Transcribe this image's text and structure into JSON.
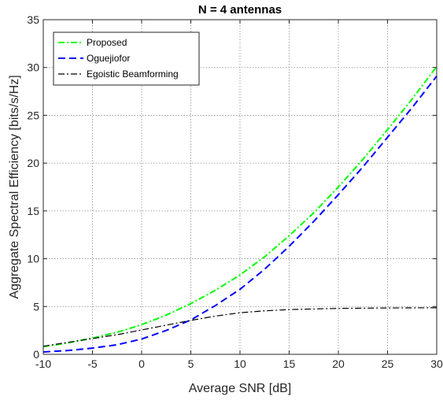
{
  "chart_data": {
    "type": "line",
    "title": "N = 4 antennas",
    "xlabel": "Average SNR [dB]",
    "ylabel": "Aggregate Spectral Efficiency [bits/s/Hz]",
    "xlim": [
      -10,
      30
    ],
    "ylim": [
      0,
      35
    ],
    "xticks": [
      -10,
      -5,
      0,
      5,
      10,
      15,
      20,
      25,
      30
    ],
    "yticks": [
      0,
      5,
      10,
      15,
      20,
      25,
      30,
      35
    ],
    "xtick_labels": [
      "-10",
      "-5",
      "0",
      "5",
      "10",
      "15",
      "20",
      "25",
      "30"
    ],
    "ytick_labels": [
      "0",
      "5",
      "10",
      "15",
      "20",
      "25",
      "30",
      "35"
    ],
    "grid": true,
    "legend_position": "top-left",
    "x": [
      -10,
      -7.5,
      -5,
      -2.5,
      0,
      2.5,
      5,
      7.5,
      10,
      12.5,
      15,
      17.5,
      20,
      22.5,
      25,
      27.5,
      30
    ],
    "series": [
      {
        "name": "Proposed",
        "color": "#00ff00",
        "dash": "dash-dot",
        "values": [
          0.8,
          1.2,
          1.7,
          2.3,
          3.1,
          4.1,
          5.3,
          6.7,
          8.3,
          10.2,
          12.4,
          14.8,
          17.5,
          20.4,
          23.5,
          26.7,
          30.1
        ]
      },
      {
        "name": "Oguejiofor",
        "color": "#0000ff",
        "dash": "dashed",
        "values": [
          0.25,
          0.4,
          0.65,
          1.0,
          1.6,
          2.5,
          3.6,
          5.1,
          6.8,
          8.9,
          11.3,
          13.9,
          16.7,
          19.6,
          22.7,
          25.8,
          29.1
        ]
      },
      {
        "name": "Egoistic Beamforming",
        "color": "#000000",
        "dash": "dash-dot",
        "values": [
          0.85,
          1.25,
          1.65,
          2.05,
          2.55,
          3.05,
          3.55,
          4.0,
          4.35,
          4.55,
          4.68,
          4.75,
          4.8,
          4.83,
          4.85,
          4.86,
          4.87
        ]
      }
    ]
  }
}
